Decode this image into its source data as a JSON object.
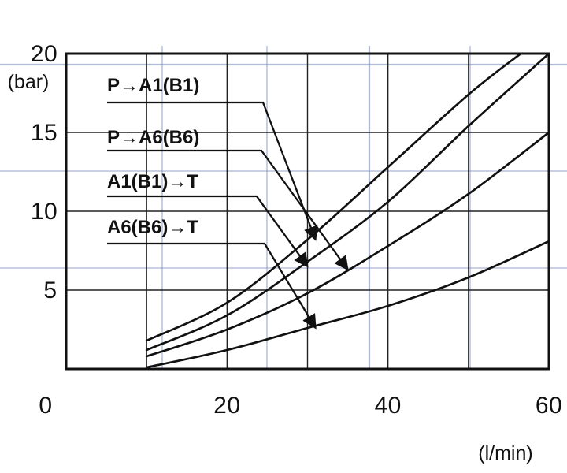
{
  "chart_data": {
    "type": "line",
    "xlabel": "(l/min)",
    "ylabel": "(bar)",
    "origin_label": "0",
    "xlim": [
      0,
      60
    ],
    "ylim": [
      0,
      20
    ],
    "x_ticks": [
      {
        "value": 20,
        "label": "20"
      },
      {
        "value": 40,
        "label": "40"
      },
      {
        "value": 60,
        "label": "60"
      }
    ],
    "y_ticks": [
      {
        "value": 5,
        "label": "5"
      },
      {
        "value": 10,
        "label": "10"
      },
      {
        "value": 15,
        "label": "15"
      },
      {
        "value": 20,
        "label": "20"
      }
    ],
    "grid": true,
    "series": [
      {
        "name": "P→A1(B1)",
        "x": [
          10,
          20,
          30,
          40,
          50,
          56.5
        ],
        "y": [
          1.8,
          4.2,
          8.2,
          12.8,
          17.4,
          20
        ]
      },
      {
        "name": "P→A6(B6)",
        "x": [
          10,
          20,
          30,
          40,
          50,
          60
        ],
        "y": [
          1.2,
          3.4,
          6.8,
          10.6,
          15.4,
          20
        ]
      },
      {
        "name": "A1(B1)→T",
        "x": [
          10,
          20,
          30,
          40,
          50,
          60
        ],
        "y": [
          0.8,
          2.5,
          4.8,
          7.8,
          11.1,
          15
        ]
      },
      {
        "name": "A6(B6)→T",
        "x": [
          10,
          20,
          30,
          40,
          50,
          60
        ],
        "y": [
          0.1,
          1.2,
          2.6,
          4.0,
          5.8,
          8.1
        ]
      }
    ],
    "annotations": [
      {
        "series": "P→A1(B1)",
        "text": "P→A1(B1)",
        "pointer_x": 31,
        "pointer_y": 8.2
      },
      {
        "series": "P→A6(B6)",
        "text": "P→A6(B6)",
        "pointer_x": 35,
        "pointer_y": 6.3
      },
      {
        "series": "A1(B1)→T",
        "text": "A1(B1)→T",
        "pointer_x": 30,
        "pointer_y": 6.5
      },
      {
        "series": "A6(B6)→T",
        "text": "A6(B6)→T",
        "pointer_x": 31,
        "pointer_y": 2.6
      }
    ],
    "colors": {
      "lines": "#111111",
      "background_grid": "#7d8fbf"
    }
  }
}
